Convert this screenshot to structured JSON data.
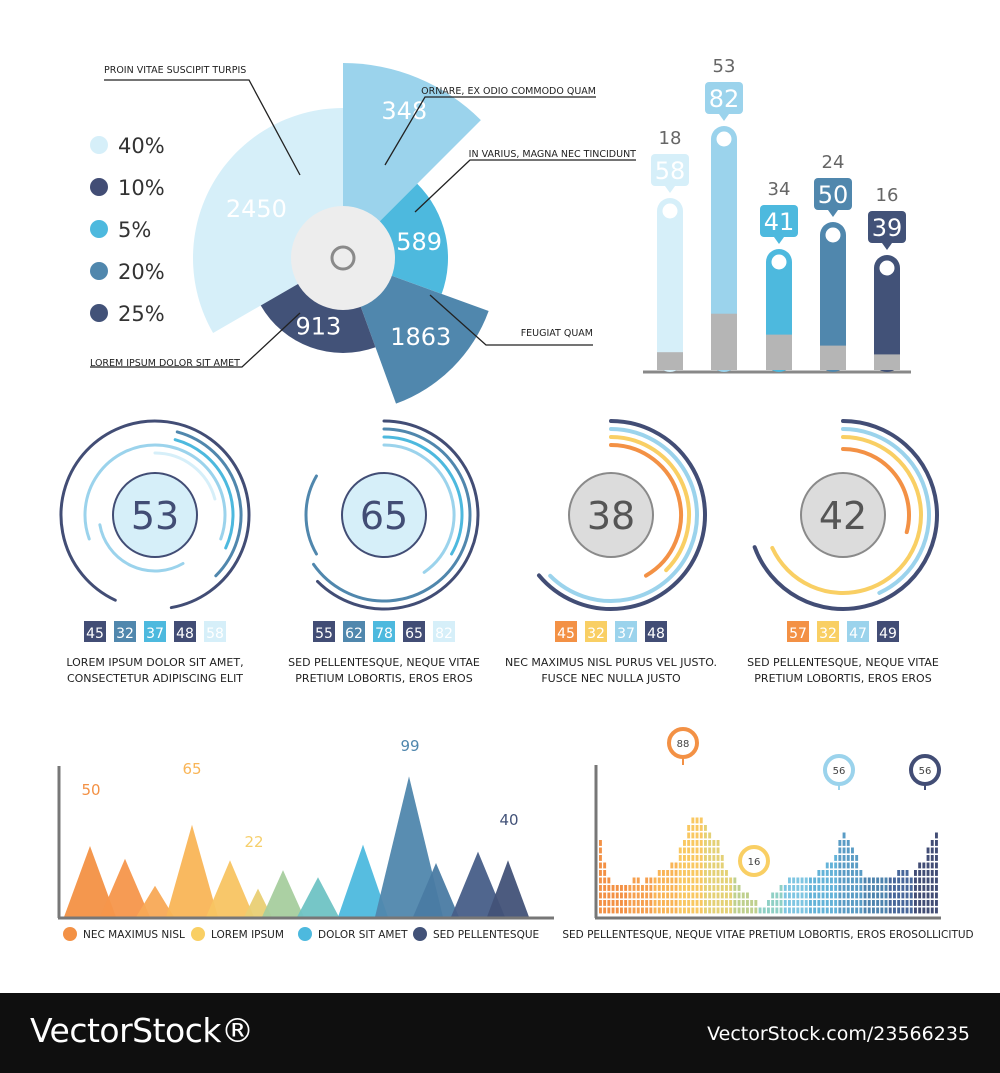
{
  "colors": {
    "c1": "#d6eff9",
    "c2": "#9bd3ec",
    "c3": "#4db9de",
    "c4": "#5087ad",
    "c5": "#425278",
    "dark": "#3f4a72",
    "gray": "#b7b7b7",
    "orange": "#f39145",
    "yellow": "#f9cf64",
    "green": "#a7ce9e",
    "teal": "#6fc3c4"
  },
  "chart_data": [
    {
      "id": "radial",
      "type": "pie",
      "legend": [
        {
          "label": "40%",
          "color": "#d6eff9"
        },
        {
          "label": "10%",
          "color": "#424d75"
        },
        {
          "label": "5%",
          "color": "#4db9de"
        },
        {
          "label": "20%",
          "color": "#5087ad"
        },
        {
          "label": "25%",
          "color": "#425278"
        }
      ],
      "slices": [
        {
          "value": 2450,
          "label": "PROIN VITAE SUSCIPIT TURPIS",
          "color": "#d6eff9"
        },
        {
          "value": 348,
          "label": "ORNARE, EX ODIO COMMODO QUAM",
          "color": "#9bd3ec"
        },
        {
          "value": 589,
          "label": "IN VARIUS, MAGNA NEC TINCIDUNT",
          "color": "#4db9de"
        },
        {
          "value": 1863,
          "label": "FEUGIAT QUAM",
          "color": "#5087ad"
        },
        {
          "value": 913,
          "label": "LOREM IPSUM DOLOR SIT AMET",
          "color": "#425278"
        }
      ]
    },
    {
      "id": "capsules",
      "type": "bar",
      "series": [
        {
          "name": "top",
          "values": [
            18,
            53,
            34,
            24,
            16
          ]
        },
        {
          "name": "main",
          "values": [
            58,
            82,
            41,
            50,
            39
          ]
        }
      ],
      "colors": [
        "#d6eff9",
        "#9bd3ec",
        "#4db9de",
        "#5087ad",
        "#425278"
      ],
      "ylim": [
        0,
        100
      ]
    },
    {
      "id": "rings",
      "type": "pie",
      "items": [
        {
          "center": "53",
          "values": [
            "45",
            "32",
            "37",
            "48",
            "58"
          ],
          "colors": [
            "#424d75",
            "#5087ad",
            "#4db9de",
            "#424d75",
            "#d6eff9"
          ],
          "caption1": "LOREM IPSUM DOLOR SIT AMET,",
          "caption2": "CONSECTETUR ADIPISCING ELIT"
        },
        {
          "center": "65",
          "values": [
            "55",
            "62",
            "78",
            "65",
            "82"
          ],
          "colors": [
            "#424d75",
            "#5087ad",
            "#4db9de",
            "#424d75",
            "#d6eff9"
          ],
          "caption1": "SED PELLENTESQUE, NEQUE VITAE",
          "caption2": "PRETIUM LOBORTIS, EROS EROS"
        },
        {
          "center": "38",
          "values": [
            "45",
            "32",
            "37",
            "48"
          ],
          "colors": [
            "#f39145",
            "#f9cf64",
            "#9bd3ec",
            "#424d75"
          ],
          "caption1": "NEC MAXIMUS NISL PURUS VEL JUSTO.",
          "caption2": "FUSCE NEC NULLA JUSTO"
        },
        {
          "center": "42",
          "values": [
            "57",
            "32",
            "47",
            "49"
          ],
          "colors": [
            "#f39145",
            "#f9cf64",
            "#9bd3ec",
            "#424d75"
          ],
          "caption1": "SED PELLENTESQUE, NEQUE VITAE",
          "caption2": "PRETIUM LOBORTIS, EROS EROS"
        }
      ]
    },
    {
      "id": "triangles",
      "type": "area",
      "labels": [
        {
          "value": "50",
          "color": "#f39145"
        },
        {
          "value": "65",
          "color": "#f9b557"
        },
        {
          "value": "22",
          "color": "#f6cf6c"
        },
        {
          "value": "99",
          "color": "#5087ad"
        },
        {
          "value": "40",
          "color": "#425278"
        }
      ],
      "peaks": [
        50,
        41,
        22,
        65,
        40,
        20,
        33,
        28,
        51,
        99,
        38,
        46,
        40
      ],
      "legend": [
        {
          "label": "NEC MAXIMUS NISL",
          "color": "#f39145"
        },
        {
          "label": "LOREM IPSUM",
          "color": "#f9cf64"
        },
        {
          "label": "DOLOR SIT AMET",
          "color": "#4db9de"
        },
        {
          "label": "SED PELLENTESQUE",
          "color": "#425278"
        }
      ]
    },
    {
      "id": "stacks",
      "type": "bar",
      "markers": [
        {
          "value": "88",
          "color": "#f39145"
        },
        {
          "value": "16",
          "color": "#f9cf64"
        },
        {
          "value": "56",
          "color": "#9bd3ec"
        },
        {
          "value": "56",
          "color": "#424d75"
        }
      ],
      "values": [
        10,
        7,
        5,
        4,
        4,
        4,
        4,
        4,
        5,
        5,
        4,
        5,
        5,
        5,
        6,
        6,
        6,
        7,
        7,
        9,
        10,
        12,
        13,
        13,
        13,
        12,
        11,
        10,
        10,
        8,
        6,
        5,
        5,
        4,
        3,
        3,
        2,
        2,
        1,
        1,
        2,
        3,
        3,
        4,
        4,
        5,
        5,
        5,
        5,
        5,
        5,
        5,
        6,
        6,
        7,
        7,
        8,
        10,
        11,
        10,
        9,
        8,
        6,
        5,
        5,
        5,
        5,
        5,
        5,
        5,
        5,
        6,
        6,
        6,
        5,
        6,
        7,
        7,
        9,
        10,
        11
      ],
      "caption": "SED PELLENTESQUE, NEQUE VITAE PRETIUM LOBORTIS, EROS EROSOLLICITUD"
    }
  ],
  "footer": {
    "brand": "VectorStock®",
    "id": "VectorStock.com/23566235"
  }
}
